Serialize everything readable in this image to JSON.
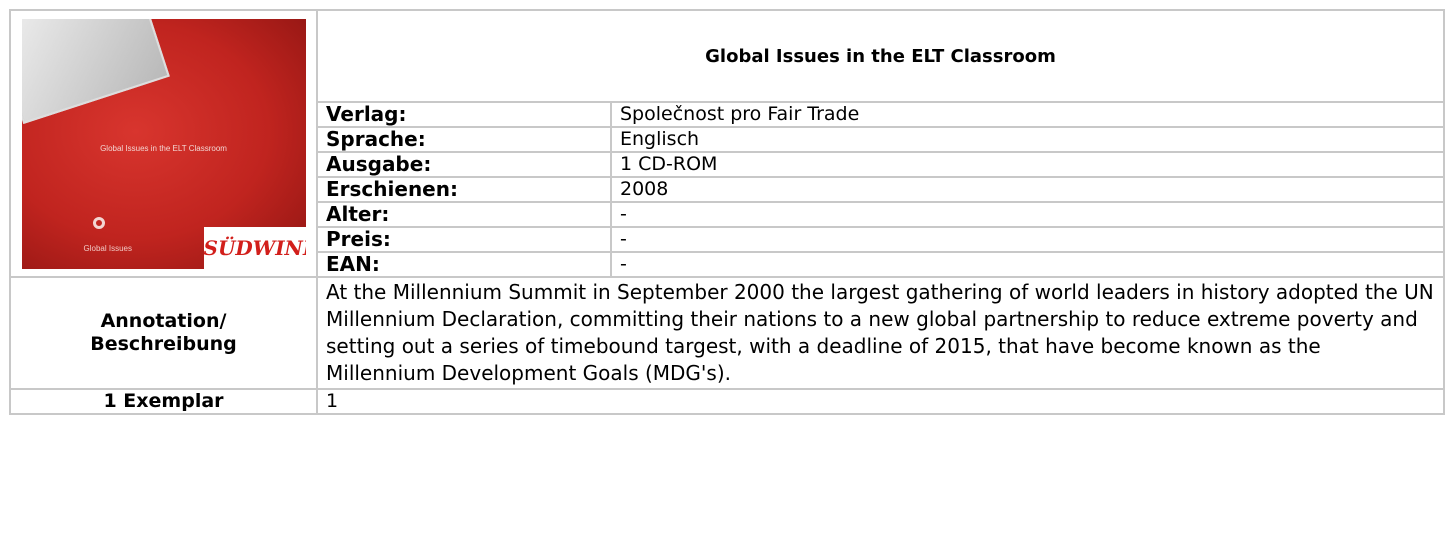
{
  "cover": {
    "title": "Global Issues in the ELT Classroom",
    "series": "Global Issues",
    "brand": "SÜDWIND"
  },
  "book": {
    "title": "Global Issues in the ELT Classroom",
    "details": [
      {
        "label": "Verlag:",
        "value": "Společnost pro Fair Trade"
      },
      {
        "label": "Sprache:",
        "value": "Englisch"
      },
      {
        "label": "Ausgabe:",
        "value": "1 CD-ROM"
      },
      {
        "label": "Erschienen:",
        "value": "2008"
      },
      {
        "label": "Alter:",
        "value": "-"
      },
      {
        "label": "Preis:",
        "value": "-"
      },
      {
        "label": "EAN:",
        "value": "-"
      }
    ],
    "annotation": {
      "label": [
        "Annotation/",
        "Beschreibung"
      ],
      "text": "At the Millennium Summit in September 2000 the largest gathering of world leaders in history adopted the UN Millennium Declaration, committing their nations to a new global partnership to reduce extreme poverty and setting out a series of timebound targest, with a deadline of 2015, that have become known as the Millennium Development Goals (MDG's)."
    },
    "copies": {
      "label": "1 Exemplar",
      "value": "1"
    }
  }
}
